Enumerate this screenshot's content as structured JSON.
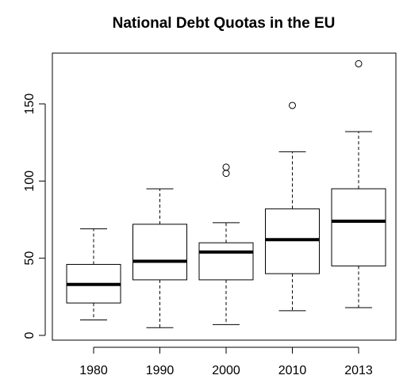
{
  "chart_data": {
    "type": "boxplot",
    "title": "National Debt Quotas in the EU",
    "xlabel": "",
    "ylabel": "",
    "categories": [
      "1980",
      "1990",
      "2000",
      "2010",
      "2013"
    ],
    "ylim": [
      -2,
      182
    ],
    "yticks": [
      0,
      50,
      100,
      150
    ],
    "ytick_labels": [
      "0",
      "50",
      "100",
      "150"
    ],
    "grid": false,
    "boxes": [
      {
        "category": "1980",
        "whisker_low": 10,
        "q1": 21,
        "median": 33,
        "q3": 46,
        "whisker_high": 69,
        "outliers": []
      },
      {
        "category": "1990",
        "whisker_low": 5,
        "q1": 36,
        "median": 48,
        "q3": 72,
        "whisker_high": 95,
        "outliers": []
      },
      {
        "category": "2000",
        "whisker_low": 7,
        "q1": 36,
        "median": 54,
        "q3": 60,
        "whisker_high": 73,
        "outliers": [
          105,
          109
        ]
      },
      {
        "category": "2010",
        "whisker_low": 16,
        "q1": 40,
        "median": 62,
        "q3": 82,
        "whisker_high": 119,
        "outliers": [
          149
        ]
      },
      {
        "category": "2013",
        "whisker_low": 18,
        "q1": 45,
        "median": 74,
        "q3": 95,
        "whisker_high": 132,
        "outliers": [
          176
        ]
      }
    ]
  }
}
